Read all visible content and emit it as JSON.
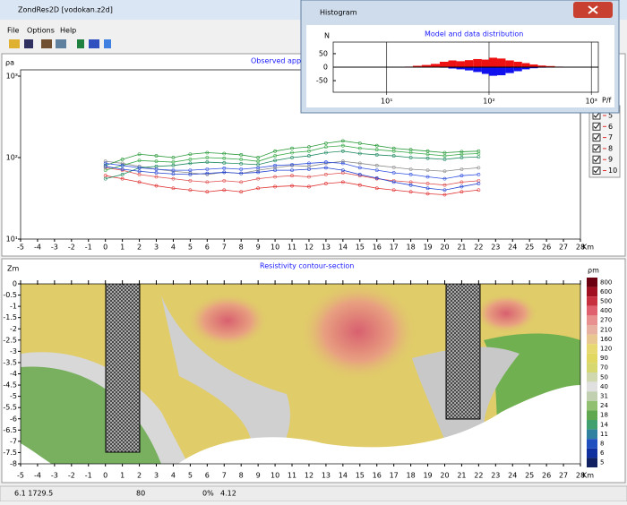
{
  "window": {
    "title": "ZondRes2D [vodokan.z2d]",
    "menu": [
      "File",
      "Options",
      "Help"
    ]
  },
  "histogram_window": {
    "title": "Histogram"
  },
  "legend": [
    "5",
    "6",
    "7",
    "8",
    "9",
    "10"
  ],
  "status_bar": [
    "6.1 1729.5",
    "80",
    "0%",
    "4.12"
  ],
  "chart_data": [
    {
      "type": "line",
      "title": "Observed apparent",
      "y_label": "ρa",
      "x_label": "Km",
      "log_y": true,
      "x": [
        0,
        1,
        2,
        3,
        4,
        5,
        6,
        7,
        8,
        9,
        10,
        11,
        12,
        13,
        14,
        15,
        16,
        17,
        18,
        19,
        20,
        21,
        22
      ],
      "series": [
        {
          "color": "#e03030",
          "values": [
            60,
            55,
            50,
            45,
            42,
            40,
            38,
            40,
            38,
            42,
            44,
            45,
            44,
            48,
            50,
            46,
            42,
            40,
            38,
            36,
            35,
            38,
            40
          ]
        },
        {
          "color": "#e05050",
          "values": [
            75,
            70,
            62,
            58,
            55,
            52,
            50,
            52,
            50,
            55,
            58,
            60,
            58,
            62,
            65,
            60,
            55,
            52,
            50,
            48,
            46,
            50,
            52
          ]
        },
        {
          "color": "#8a8a8a",
          "values": [
            90,
            85,
            78,
            72,
            68,
            65,
            62,
            66,
            64,
            70,
            75,
            80,
            78,
            85,
            90,
            85,
            80,
            76,
            72,
            70,
            68,
            72,
            75
          ]
        },
        {
          "color": "#2a9a3a",
          "values": [
            80,
            95,
            110,
            105,
            100,
            110,
            115,
            112,
            108,
            100,
            120,
            130,
            135,
            150,
            160,
            150,
            140,
            130,
            125,
            120,
            115,
            118,
            120
          ]
        },
        {
          "color": "#3aaa4a",
          "values": [
            70,
            80,
            92,
            90,
            88,
            95,
            100,
            98,
            95,
            90,
            105,
            115,
            120,
            135,
            140,
            130,
            125,
            120,
            115,
            110,
            105,
            110,
            112
          ]
        },
        {
          "color": "#208a60",
          "values": [
            55,
            62,
            75,
            78,
            80,
            85,
            88,
            86,
            84,
            82,
            92,
            100,
            105,
            115,
            120,
            112,
            108,
            105,
            100,
            98,
            95,
            100,
            102
          ]
        },
        {
          "color": "#3050e0",
          "values": [
            85,
            80,
            75,
            72,
            70,
            70,
            72,
            74,
            72,
            75,
            80,
            82,
            85,
            88,
            85,
            75,
            70,
            65,
            62,
            58,
            55,
            60,
            62
          ]
        },
        {
          "color": "#2040d0",
          "values": [
            78,
            72,
            68,
            65,
            63,
            62,
            64,
            66,
            64,
            66,
            70,
            70,
            72,
            75,
            70,
            62,
            56,
            50,
            46,
            42,
            40,
            44,
            48
          ]
        }
      ],
      "xlim": [
        -5,
        28
      ],
      "ylim": [
        10,
        1000
      ],
      "xticks": [
        -5,
        -4,
        -3,
        -2,
        -1,
        0,
        1,
        2,
        3,
        4,
        5,
        6,
        7,
        8,
        9,
        10,
        11,
        12,
        13,
        14,
        15,
        16,
        17,
        18,
        19,
        20,
        21,
        22,
        23,
        24,
        25,
        26,
        27,
        28
      ],
      "yticks": [
        {
          "value": 10,
          "label": "10¹"
        },
        {
          "value": 100,
          "label": "10²"
        },
        {
          "value": 1000,
          "label": "10³"
        }
      ]
    },
    {
      "type": "contour",
      "title": "Resistivity contour-section",
      "y_label": "Zm",
      "x_label": "Km",
      "xlim": [
        -5,
        28
      ],
      "ylim": [
        -8,
        0
      ],
      "xticks": [
        -5,
        -4,
        -3,
        -2,
        -1,
        0,
        1,
        2,
        3,
        4,
        5,
        6,
        7,
        8,
        9,
        10,
        11,
        12,
        13,
        14,
        15,
        16,
        17,
        18,
        19,
        20,
        21,
        22,
        23,
        24,
        25,
        26,
        27,
        28
      ],
      "yticks": [
        0,
        -0.5,
        -1,
        -1.5,
        -2,
        -2.5,
        -3,
        -3.5,
        -4,
        -4.5,
        -5,
        -5.5,
        -6,
        -6.5,
        -7,
        -7.5,
        -8
      ],
      "colorbar": {
        "label": "ρm",
        "ticks": [
          800,
          600,
          500,
          400,
          270,
          210,
          160,
          120,
          90,
          70,
          50,
          40,
          31,
          24,
          18,
          14,
          11,
          8,
          6,
          5
        ],
        "colors": [
          "#6a0010",
          "#a01020",
          "#c83040",
          "#e06070",
          "#e89090",
          "#e8b0a0",
          "#e8c890",
          "#e8d870",
          "#e0d860",
          "#d8d870",
          "#d0d8b0",
          "#e0e0e0",
          "#c0d0b0",
          "#90c070",
          "#60a850",
          "#40a070",
          "#3080a0",
          "#2050c0",
          "#1030a0",
          "#102060"
        ]
      }
    },
    {
      "type": "histogram",
      "title": "Model and data distribution",
      "y_label": "N",
      "x_label": "P/f",
      "log_x": true,
      "bins": [
        15,
        18,
        22,
        27,
        33,
        40,
        48,
        58,
        70,
        85,
        100,
        120,
        145,
        175,
        210,
        250,
        300,
        360,
        440,
        530,
        640
      ],
      "series": [
        {
          "color": "#ee1111",
          "values": [
            2,
            5,
            8,
            12,
            20,
            25,
            22,
            26,
            30,
            28,
            35,
            32,
            25,
            20,
            15,
            10,
            6,
            4,
            2,
            1
          ]
        },
        {
          "color": "#1111ee",
          "values": [
            0,
            0,
            0,
            0,
            -2,
            -5,
            -8,
            -12,
            -18,
            -25,
            -32,
            -30,
            -22,
            -15,
            -8,
            -4,
            -2,
            0,
            0,
            0
          ]
        }
      ],
      "xlim": [
        3,
        1170
      ],
      "ylim": [
        -93,
        93
      ],
      "xticks": [
        {
          "value": 10,
          "label": "10¹"
        },
        {
          "value": 100,
          "label": "10²"
        },
        {
          "value": 1000,
          "label": "10³"
        }
      ],
      "yticks": [
        -50,
        0,
        50
      ]
    }
  ]
}
